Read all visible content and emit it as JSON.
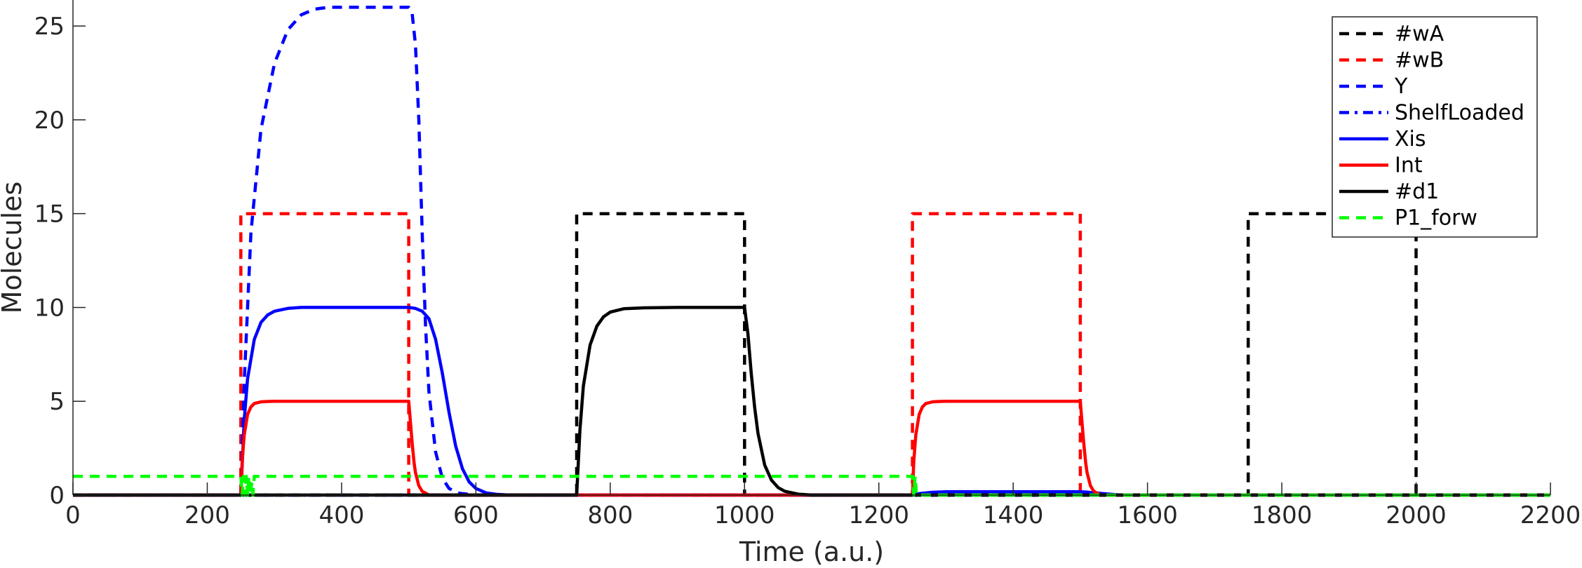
{
  "chart_data": {
    "type": "line",
    "title": "",
    "xlabel": "Time (a.u.)",
    "ylabel": "Molecules",
    "xlim": [
      0,
      2200
    ],
    "ylim": [
      0,
      26
    ],
    "xticks": [
      0,
      200,
      400,
      600,
      800,
      1000,
      1200,
      1400,
      1600,
      1800,
      2000,
      2200
    ],
    "yticks": [
      0,
      5,
      10,
      15,
      20,
      25
    ],
    "grid": false,
    "legend_position": "top-right",
    "series": [
      {
        "name": "#wA",
        "color": "#000000",
        "style": "dashed",
        "x": [
          0,
          750,
          750,
          1000,
          1000,
          1750,
          1750,
          2000,
          2000,
          2200
        ],
        "y": [
          0,
          0,
          15,
          15,
          0,
          0,
          15,
          15,
          0,
          0
        ]
      },
      {
        "name": "#wB",
        "color": "#ff0000",
        "style": "dashed",
        "x": [
          0,
          250,
          250,
          500,
          500,
          1250,
          1250,
          1500,
          1500,
          2200
        ],
        "y": [
          0,
          0,
          15,
          15,
          0,
          0,
          15,
          15,
          0,
          0
        ]
      },
      {
        "name": "Y",
        "color": "#0000ff",
        "style": "dashed",
        "x": [
          0,
          250,
          255,
          265,
          280,
          300,
          320,
          340,
          360,
          380,
          400,
          450,
          500,
          505,
          510,
          515,
          520,
          525,
          530,
          540,
          550,
          560,
          575,
          600,
          2200
        ],
        "y": [
          0,
          0,
          6,
          14,
          19.5,
          23,
          24.8,
          25.6,
          25.9,
          26,
          26,
          26,
          26,
          25.7,
          24,
          20,
          14,
          9,
          5.5,
          2.3,
          0.9,
          0.35,
          0.1,
          0,
          0
        ]
      },
      {
        "name": "ShelfLoaded",
        "color": "#0000ff",
        "style": "dashdot",
        "x": [
          0,
          2200
        ],
        "y": [
          0,
          0
        ]
      },
      {
        "name": "Xis",
        "color": "#0000ff",
        "style": "solid",
        "x": [
          0,
          250,
          255,
          260,
          270,
          280,
          290,
          300,
          320,
          340,
          360,
          400,
          450,
          500,
          510,
          520,
          530,
          540,
          550,
          560,
          570,
          580,
          590,
          600,
          615,
          630,
          650,
          1250,
          1260,
          1280,
          1300,
          1500,
          1510,
          1520,
          1540,
          1560,
          2200
        ],
        "y": [
          0,
          0,
          4,
          6.2,
          8.3,
          9.2,
          9.6,
          9.8,
          9.95,
          10,
          10,
          10,
          10,
          10,
          9.95,
          9.8,
          9.4,
          8.3,
          6.5,
          4.4,
          2.6,
          1.4,
          0.7,
          0.35,
          0.12,
          0.04,
          0,
          0,
          0.08,
          0.15,
          0.18,
          0.18,
          0.16,
          0.12,
          0.06,
          0,
          0
        ]
      },
      {
        "name": "Int",
        "color": "#ff0000",
        "style": "solid",
        "x": [
          0,
          250,
          252,
          255,
          260,
          265,
          270,
          280,
          290,
          300,
          500,
          502,
          505,
          508,
          510,
          515,
          520,
          530,
          1250,
          1252,
          1255,
          1260,
          1265,
          1270,
          1280,
          1290,
          1300,
          1500,
          1502,
          1505,
          1508,
          1510,
          1515,
          1520,
          1530,
          2200
        ],
        "y": [
          0,
          0,
          1.8,
          3.2,
          4.3,
          4.7,
          4.88,
          4.97,
          4.99,
          5,
          5,
          4.1,
          2.8,
          1.7,
          1.2,
          0.5,
          0.2,
          0,
          0,
          1.8,
          3.2,
          4.3,
          4.7,
          4.88,
          4.97,
          4.99,
          5,
          5,
          4.1,
          2.8,
          1.7,
          1.2,
          0.5,
          0.2,
          0,
          0
        ]
      },
      {
        "name": "#d1",
        "color": "#000000",
        "style": "solid",
        "x": [
          0,
          750,
          755,
          760,
          770,
          780,
          790,
          800,
          820,
          850,
          900,
          1000,
          1005,
          1010,
          1015,
          1020,
          1030,
          1040,
          1050,
          1060,
          1080,
          1100,
          2200
        ],
        "y": [
          0,
          0,
          3.5,
          5.8,
          8,
          9,
          9.5,
          9.75,
          9.93,
          9.98,
          10,
          10,
          8.6,
          6.5,
          4.7,
          3.3,
          1.6,
          0.8,
          0.4,
          0.2,
          0.05,
          0,
          0
        ]
      },
      {
        "name": "P1_forw",
        "color": "#00ff00",
        "style": "dashed",
        "x": [
          0,
          250,
          252,
          254,
          256,
          258,
          260,
          262,
          264,
          266,
          268,
          270,
          1250,
          1252,
          1254,
          1256,
          2200
        ],
        "y": [
          1,
          1,
          0,
          1,
          0,
          1,
          0,
          1,
          0,
          0.6,
          0,
          1,
          1,
          0,
          1,
          0,
          0
        ]
      }
    ]
  }
}
